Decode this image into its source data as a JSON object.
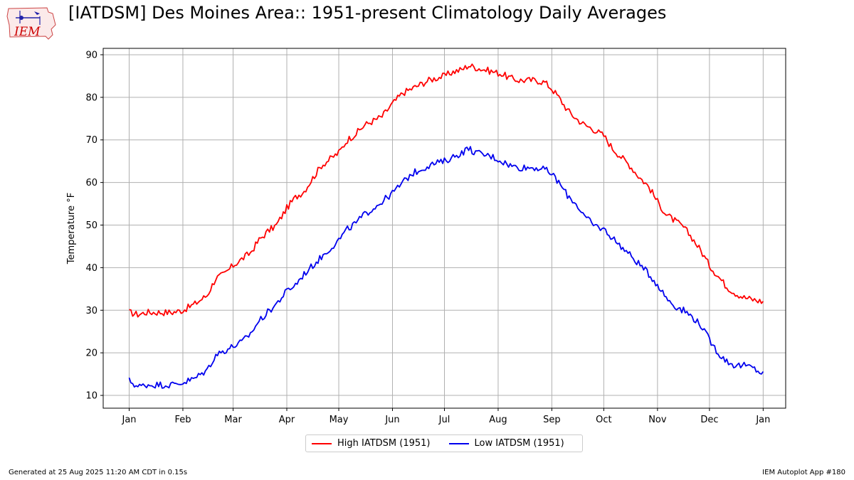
{
  "header": {
    "title": "[IATDSM] Des Moines Area:: 1951-present Climatology Daily Averages",
    "logo_text": "IEM"
  },
  "footer": {
    "generated": "Generated at 25 Aug 2025 11:20 AM CDT in 0.15s",
    "app": "IEM Autoplot App #180"
  },
  "colors": {
    "high": "#ff0000",
    "low": "#0000ee",
    "grid": "#b0b0b0",
    "logo": "#cc0000"
  },
  "chart_data": {
    "type": "line",
    "title": "[IATDSM] Des Moines Area:: 1951-present Climatology Daily Averages",
    "ylabel": "Temperature  °F",
    "xlabel": "",
    "ylim": [
      7,
      91.5
    ],
    "xlim": [
      -15,
      379
    ],
    "yticks": [
      10,
      20,
      30,
      40,
      50,
      60,
      70,
      80,
      90
    ],
    "xticks": [
      {
        "label": "Jan",
        "day": 0
      },
      {
        "label": "Feb",
        "day": 31
      },
      {
        "label": "Mar",
        "day": 60
      },
      {
        "label": "Apr",
        "day": 91
      },
      {
        "label": "May",
        "day": 121
      },
      {
        "label": "Jun",
        "day": 152
      },
      {
        "label": "Jul",
        "day": 182
      },
      {
        "label": "Aug",
        "day": 213
      },
      {
        "label": "Sep",
        "day": 244
      },
      {
        "label": "Oct",
        "day": 274
      },
      {
        "label": "Nov",
        "day": 305
      },
      {
        "label": "Dec",
        "day": 335
      },
      {
        "label": "Jan",
        "day": 366
      }
    ],
    "grid": true,
    "legend_position": "bottom-center",
    "series": [
      {
        "name": "High IATDSM (1951)",
        "color": "#ff0000",
        "day": [
          0,
          5,
          10,
          15,
          20,
          25,
          31,
          38,
          45,
          50,
          55,
          60,
          65,
          70,
          75,
          80,
          85,
          91,
          96,
          101,
          106,
          111,
          116,
          121,
          126,
          131,
          136,
          141,
          146,
          152,
          158,
          163,
          168,
          173,
          177,
          182,
          187,
          192,
          196,
          200,
          205,
          210,
          215,
          220,
          225,
          230,
          235,
          240,
          244,
          248,
          253,
          258,
          263,
          268,
          274,
          279,
          284,
          289,
          294,
          300,
          305,
          310,
          315,
          320,
          325,
          330,
          335,
          340,
          345,
          350,
          355,
          360,
          366
        ],
        "values": [
          29.5,
          29,
          29.5,
          29.5,
          29.5,
          29.5,
          30,
          31.5,
          33.5,
          37.5,
          38.5,
          40.5,
          42,
          43.5,
          46.5,
          48.5,
          50,
          54,
          56.5,
          58,
          61,
          64,
          65.5,
          67,
          70,
          71.5,
          73.5,
          74.5,
          75.5,
          78.5,
          81,
          82,
          83,
          84,
          84.5,
          85,
          86,
          86.5,
          87.5,
          87,
          86.5,
          86,
          85.5,
          84.5,
          84,
          84,
          84,
          83.5,
          82,
          80,
          77,
          75,
          73.5,
          72.5,
          71,
          68,
          66,
          64,
          61.5,
          59,
          55.5,
          52.5,
          51,
          49.5,
          47,
          44,
          40.5,
          38,
          35.5,
          34,
          33,
          32.5,
          32
        ]
      },
      {
        "name": "Low IATDSM (1951)",
        "color": "#0000ee",
        "day": [
          0,
          5,
          10,
          15,
          20,
          25,
          31,
          38,
          45,
          50,
          55,
          60,
          65,
          70,
          75,
          80,
          85,
          91,
          96,
          101,
          106,
          111,
          116,
          121,
          126,
          131,
          136,
          141,
          146,
          152,
          158,
          163,
          168,
          173,
          177,
          182,
          187,
          192,
          196,
          200,
          205,
          210,
          215,
          220,
          225,
          230,
          235,
          240,
          244,
          248,
          253,
          258,
          263,
          268,
          274,
          279,
          284,
          289,
          294,
          300,
          305,
          310,
          315,
          320,
          325,
          330,
          335,
          340,
          345,
          350,
          355,
          360,
          366
        ],
        "values": [
          13.5,
          12,
          12.5,
          12.5,
          12.5,
          12.5,
          13,
          14,
          16,
          19.5,
          20.5,
          21.5,
          22.5,
          24.5,
          27.5,
          29.5,
          31.5,
          34.5,
          36,
          38.5,
          40.5,
          42.5,
          44.5,
          46.5,
          49,
          50.5,
          52.5,
          54,
          55.5,
          57.5,
          60,
          62,
          63,
          64,
          64.5,
          65,
          66,
          67,
          68,
          67,
          66.5,
          66,
          65,
          64,
          63.5,
          63.5,
          63.5,
          63,
          62,
          60,
          57,
          55,
          52,
          50,
          49,
          47,
          45,
          43,
          41,
          38.5,
          36,
          33,
          31,
          30,
          28.5,
          26.5,
          23,
          20,
          18,
          17,
          17,
          16.5,
          15
        ]
      }
    ]
  }
}
